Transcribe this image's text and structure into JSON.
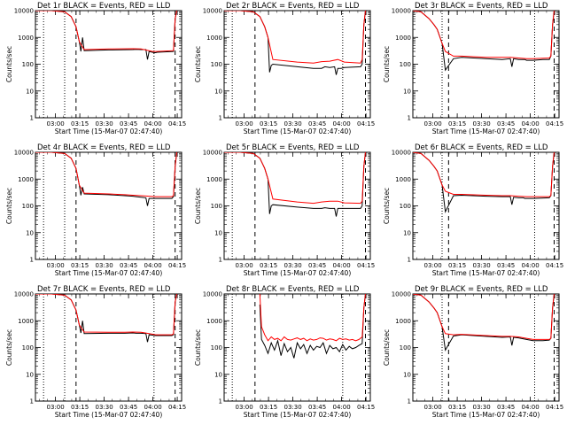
{
  "chart_data": [
    {
      "type": "line",
      "title": "Det 1r BLACK = Events, RED = LLD",
      "xlabel": "Start Time (15-Mar-07 02:47:40)",
      "ylabel": "Counts/sec",
      "yscale": "log",
      "ylim": [
        1,
        10000
      ],
      "yticks": [
        "1",
        "10",
        "100",
        "1000",
        "10000"
      ],
      "xticks": [
        "03:00",
        "03:15",
        "03:30",
        "03:45",
        "04:00",
        "04:15"
      ],
      "series": [
        {
          "color": "#000000",
          "x_min": [
            10,
            18,
            22,
            25,
            27,
            28,
            29,
            30,
            45,
            60,
            62,
            65,
            68,
            69,
            70,
            72,
            73,
            74,
            75,
            85,
            86,
            87
          ],
          "values": [
            10000,
            9000,
            6000,
            2500,
            700,
            300,
            1000,
            320,
            340,
            350,
            360,
            350,
            350,
            150,
            300,
            280,
            270,
            270,
            280,
            300,
            5000,
            10000
          ]
        },
        {
          "color": "#ff0000",
          "x_min": [
            0,
            10,
            18,
            22,
            25,
            27,
            30,
            45,
            60,
            65,
            72,
            73,
            74,
            75,
            85,
            86,
            87
          ],
          "values": [
            10000,
            10000,
            9000,
            6000,
            2500,
            700,
            350,
            370,
            380,
            370,
            300,
            300,
            300,
            300,
            320,
            5000,
            10000
          ]
        }
      ]
    },
    {
      "type": "line",
      "title": "Det 2r BLACK = Events, RED = LLD",
      "xlabel": "Start Time (15-Mar-07 02:47:40)",
      "ylabel": "Counts/sec",
      "yscale": "log",
      "ylim": [
        1,
        10000
      ],
      "yticks": [
        "1",
        "10",
        "100",
        "1000",
        "10000"
      ],
      "xticks": [
        "03:00",
        "03:15",
        "03:30",
        "03:45",
        "04:00",
        "04:15"
      ],
      "series": [
        {
          "color": "#000000",
          "x_min": [
            10,
            18,
            22,
            25,
            27,
            28,
            29,
            30,
            45,
            55,
            60,
            62,
            65,
            68,
            69,
            70,
            72,
            74,
            84,
            85,
            86,
            87
          ],
          "values": [
            10000,
            9000,
            6000,
            2500,
            1000,
            50,
            90,
            100,
            80,
            70,
            70,
            80,
            75,
            80,
            40,
            70,
            70,
            75,
            80,
            100,
            3000,
            10000
          ]
        },
        {
          "color": "#ff0000",
          "x_min": [
            0,
            10,
            18,
            22,
            25,
            27,
            30,
            45,
            55,
            60,
            65,
            70,
            74,
            84,
            85,
            86,
            87
          ],
          "values": [
            10000,
            10000,
            9000,
            6000,
            2500,
            1000,
            150,
            120,
            110,
            125,
            130,
            150,
            120,
            110,
            150,
            3000,
            10000
          ]
        }
      ]
    },
    {
      "type": "line",
      "title": "Det 3r BLACK = Events, RED = LLD",
      "xlabel": "Start Time (15-Mar-07 02:47:40)",
      "ylabel": "Counts/sec",
      "yscale": "log",
      "ylim": [
        1,
        10000
      ],
      "yticks": [
        "1",
        "10",
        "100",
        "1000",
        "10000"
      ],
      "xticks": [
        "03:00",
        "03:15",
        "03:30",
        "03:45",
        "04:00",
        "04:15"
      ],
      "series": [
        {
          "color": "#000000",
          "x_min": [
            0,
            5,
            10,
            13,
            15,
            18,
            20,
            25,
            30,
            45,
            55,
            60,
            61,
            62,
            65,
            68,
            69,
            70,
            74,
            80,
            84,
            85,
            86,
            87
          ],
          "values": [
            10000,
            9000,
            5000,
            3000,
            2000,
            600,
            60,
            160,
            180,
            160,
            150,
            160,
            80,
            160,
            150,
            150,
            150,
            140,
            140,
            150,
            150,
            200,
            3000,
            10000
          ]
        },
        {
          "color": "#ff0000",
          "x_min": [
            0,
            5,
            10,
            13,
            15,
            18,
            20,
            25,
            30,
            45,
            55,
            60,
            65,
            70,
            74,
            84,
            85,
            86,
            87
          ],
          "values": [
            10000,
            9000,
            5000,
            3000,
            2000,
            600,
            300,
            200,
            200,
            180,
            180,
            180,
            170,
            160,
            160,
            170,
            200,
            3000,
            10000
          ]
        }
      ]
    },
    {
      "type": "line",
      "title": "Det 4r BLACK = Events, RED = LLD",
      "xlabel": "Start Time (15-Mar-07 02:47:40)",
      "ylabel": "Counts/sec",
      "yscale": "log",
      "ylim": [
        1,
        10000
      ],
      "yticks": [
        "1",
        "10",
        "100",
        "1000",
        "10000"
      ],
      "xticks": [
        "03:00",
        "03:15",
        "03:30",
        "03:45",
        "04:00",
        "04:15"
      ],
      "series": [
        {
          "color": "#000000",
          "x_min": [
            10,
            18,
            22,
            25,
            27,
            28,
            29,
            30,
            45,
            55,
            60,
            62,
            65,
            68,
            69,
            70,
            72,
            74,
            84,
            85,
            86,
            87
          ],
          "values": [
            10000,
            9000,
            6000,
            2500,
            600,
            250,
            500,
            280,
            260,
            240,
            230,
            220,
            210,
            200,
            100,
            190,
            190,
            190,
            190,
            220,
            3000,
            10000
          ]
        },
        {
          "color": "#ff0000",
          "x_min": [
            0,
            10,
            18,
            22,
            25,
            27,
            30,
            45,
            55,
            60,
            65,
            70,
            74,
            84,
            85,
            86,
            87
          ],
          "values": [
            10000,
            10000,
            9000,
            6000,
            2500,
            600,
            300,
            280,
            260,
            250,
            240,
            230,
            220,
            220,
            240,
            3000,
            10000
          ]
        }
      ]
    },
    {
      "type": "line",
      "title": "Det 5r BLACK = Events, RED = LLD",
      "xlabel": "Start Time (15-Mar-07 02:47:40)",
      "ylabel": "Counts/sec",
      "yscale": "log",
      "ylim": [
        1,
        10000
      ],
      "yticks": [
        "1",
        "10",
        "100",
        "1000",
        "10000"
      ],
      "xticks": [
        "03:00",
        "03:15",
        "03:30",
        "03:45",
        "04:00",
        "04:15"
      ],
      "series": [
        {
          "color": "#000000",
          "x_min": [
            10,
            18,
            22,
            25,
            27,
            28,
            29,
            30,
            45,
            55,
            60,
            62,
            65,
            68,
            69,
            70,
            72,
            74,
            84,
            85,
            86,
            87
          ],
          "values": [
            10000,
            9000,
            6000,
            2500,
            1000,
            50,
            100,
            110,
            90,
            80,
            80,
            85,
            80,
            80,
            40,
            80,
            80,
            80,
            80,
            100,
            3000,
            10000
          ]
        },
        {
          "color": "#ff0000",
          "x_min": [
            0,
            10,
            18,
            22,
            25,
            27,
            30,
            45,
            55,
            60,
            65,
            70,
            74,
            84,
            85,
            86,
            87
          ],
          "values": [
            10000,
            10000,
            9000,
            6000,
            2500,
            1000,
            180,
            140,
            125,
            140,
            150,
            150,
            130,
            125,
            150,
            3000,
            10000
          ]
        }
      ]
    },
    {
      "type": "line",
      "title": "Det 6r BLACK = Events, RED = LLD",
      "xlabel": "Start Time (15-Mar-07 02:47:40)",
      "ylabel": "Counts/sec",
      "yscale": "log",
      "ylim": [
        1,
        10000
      ],
      "yticks": [
        "1",
        "10",
        "100",
        "1000",
        "10000"
      ],
      "xticks": [
        "03:00",
        "03:15",
        "03:30",
        "03:45",
        "04:00",
        "04:15"
      ],
      "series": [
        {
          "color": "#000000",
          "x_min": [
            0,
            5,
            10,
            13,
            15,
            18,
            20,
            25,
            30,
            45,
            55,
            60,
            61,
            62,
            65,
            68,
            69,
            70,
            74,
            84,
            85,
            86,
            87
          ],
          "values": [
            10000,
            9000,
            5000,
            3000,
            2000,
            600,
            60,
            240,
            250,
            230,
            220,
            220,
            110,
            210,
            200,
            200,
            190,
            190,
            190,
            200,
            240,
            3000,
            10000
          ]
        },
        {
          "color": "#ff0000",
          "x_min": [
            0,
            5,
            10,
            13,
            15,
            18,
            20,
            25,
            30,
            45,
            55,
            60,
            65,
            70,
            74,
            84,
            85,
            86,
            87
          ],
          "values": [
            10000,
            9000,
            5000,
            3000,
            2000,
            600,
            350,
            270,
            270,
            250,
            240,
            240,
            230,
            220,
            220,
            220,
            240,
            3000,
            10000
          ]
        }
      ]
    },
    {
      "type": "line",
      "title": "Det 7r BLACK = Events, RED = LLD",
      "xlabel": "Start Time (15-Mar-07 02:47:40)",
      "ylabel": "Counts/sec",
      "yscale": "log",
      "ylim": [
        1,
        10000
      ],
      "yticks": [
        "1",
        "10",
        "100",
        "1000",
        "10000"
      ],
      "xticks": [
        "03:00",
        "03:15",
        "03:30",
        "03:45",
        "04:00",
        "04:15"
      ],
      "series": [
        {
          "color": "#000000",
          "x_min": [
            10,
            18,
            22,
            25,
            27,
            28,
            29,
            30,
            45,
            55,
            60,
            62,
            65,
            68,
            69,
            70,
            72,
            74,
            84,
            85,
            86,
            87
          ],
          "values": [
            10000,
            9000,
            6000,
            2500,
            700,
            350,
            1000,
            330,
            340,
            340,
            350,
            340,
            340,
            330,
            160,
            300,
            290,
            280,
            280,
            300,
            5000,
            10000
          ]
        },
        {
          "color": "#ff0000",
          "x_min": [
            0,
            10,
            18,
            22,
            25,
            27,
            30,
            45,
            55,
            60,
            65,
            70,
            74,
            84,
            85,
            86,
            87
          ],
          "values": [
            10000,
            10000,
            9000,
            6000,
            2500,
            700,
            380,
            370,
            370,
            380,
            370,
            330,
            300,
            300,
            320,
            5000,
            10000
          ]
        }
      ]
    },
    {
      "type": "line",
      "title": "Det 8r BLACK = Events, RED = LLD",
      "xlabel": "Start Time (15-Mar-07 02:47:40)",
      "ylabel": "Counts/sec",
      "yscale": "log",
      "ylim": [
        1,
        10000
      ],
      "yticks": [
        "1",
        "10",
        "100",
        "1000",
        "10000"
      ],
      "xticks": [
        "03:00",
        "03:15",
        "03:30",
        "03:45",
        "04:00",
        "04:15"
      ],
      "series": [
        {
          "color": "#000000",
          "x_min": [
            22,
            23,
            25,
            27,
            29,
            31,
            33,
            35,
            37,
            39,
            41,
            43,
            45,
            47,
            49,
            51,
            53,
            55,
            57,
            59,
            61,
            63,
            65,
            67,
            69,
            71,
            73,
            75,
            77,
            79,
            81,
            83,
            85,
            86,
            87
          ],
          "values": [
            4000,
            200,
            120,
            60,
            150,
            80,
            180,
            50,
            140,
            70,
            100,
            40,
            150,
            90,
            130,
            60,
            120,
            80,
            110,
            100,
            150,
            60,
            120,
            90,
            100,
            70,
            130,
            80,
            110,
            90,
            100,
            120,
            140,
            3000,
            10000
          ]
        },
        {
          "color": "#ff0000",
          "x_min": [
            22,
            23,
            25,
            27,
            29,
            31,
            33,
            35,
            37,
            39,
            41,
            43,
            45,
            47,
            49,
            51,
            53,
            55,
            57,
            59,
            61,
            63,
            65,
            67,
            69,
            71,
            73,
            75,
            77,
            79,
            81,
            83,
            85,
            86,
            87
          ],
          "values": [
            10000,
            600,
            300,
            180,
            250,
            200,
            220,
            180,
            250,
            200,
            190,
            210,
            230,
            200,
            220,
            180,
            210,
            190,
            200,
            230,
            220,
            190,
            210,
            200,
            180,
            220,
            200,
            210,
            190,
            200,
            180,
            200,
            250,
            3000,
            10000
          ]
        }
      ]
    },
    {
      "type": "line",
      "title": "Det 9r BLACK = Events, RED = LLD",
      "xlabel": "Start Time (15-Mar-07 02:47:40)",
      "ylabel": "Counts/sec",
      "yscale": "log",
      "ylim": [
        1,
        10000
      ],
      "yticks": [
        "1",
        "10",
        "100",
        "1000",
        "10000"
      ],
      "xticks": [
        "03:00",
        "03:15",
        "03:30",
        "03:45",
        "04:00",
        "04:15"
      ],
      "series": [
        {
          "color": "#000000",
          "x_min": [
            0,
            5,
            10,
            13,
            15,
            18,
            20,
            25,
            30,
            45,
            55,
            60,
            61,
            62,
            65,
            70,
            74,
            80,
            84,
            85,
            86,
            87
          ],
          "values": [
            10000,
            9000,
            5000,
            3000,
            2000,
            600,
            80,
            270,
            300,
            260,
            240,
            250,
            120,
            240,
            230,
            200,
            180,
            180,
            190,
            220,
            3000,
            10000
          ]
        },
        {
          "color": "#ff0000",
          "x_min": [
            0,
            5,
            10,
            13,
            15,
            18,
            20,
            25,
            30,
            45,
            55,
            60,
            65,
            70,
            74,
            84,
            85,
            86,
            87
          ],
          "values": [
            10000,
            9000,
            5000,
            3000,
            2000,
            600,
            330,
            300,
            310,
            280,
            260,
            260,
            250,
            220,
            200,
            200,
            220,
            3000,
            10000
          ]
        }
      ]
    }
  ]
}
